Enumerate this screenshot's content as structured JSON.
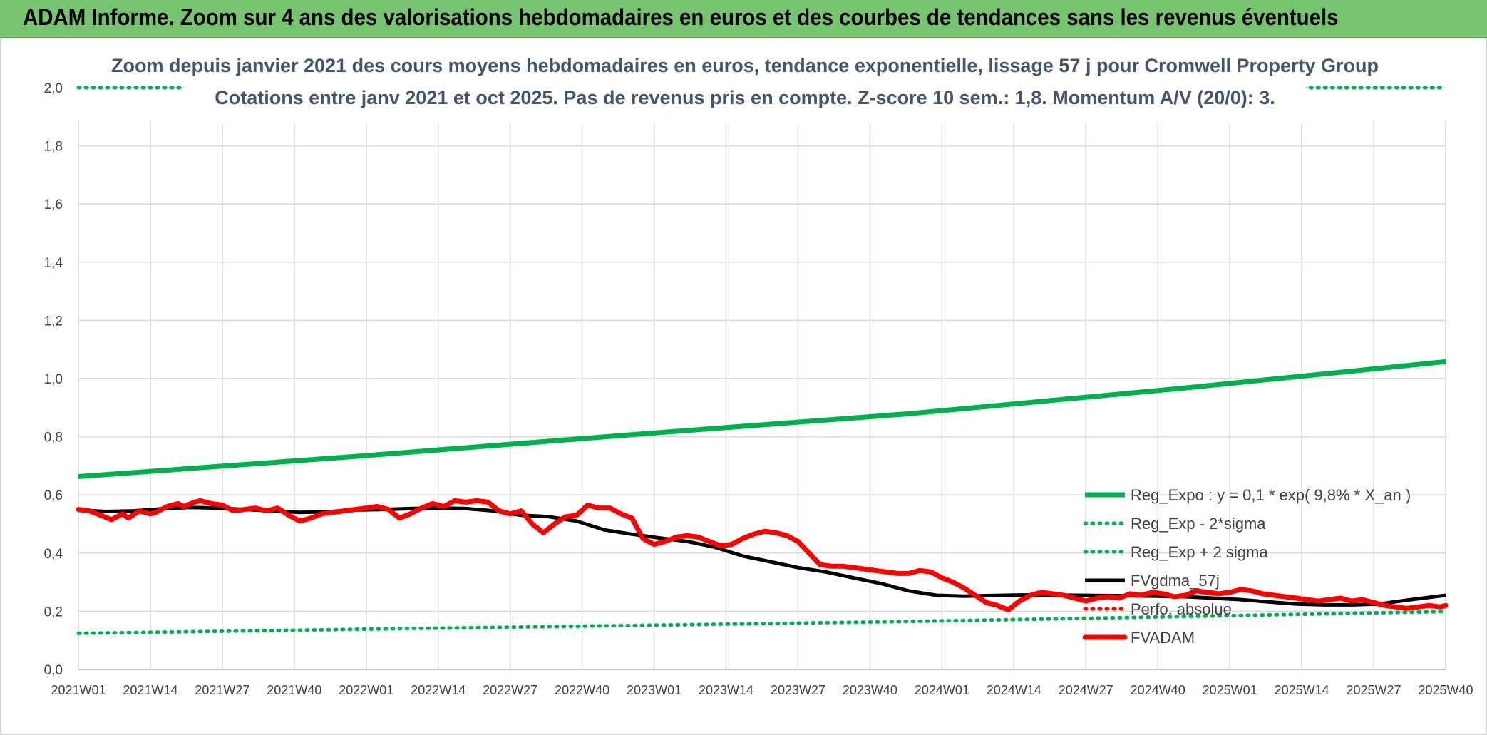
{
  "banner": {
    "title": "ADAM Informe. Zoom sur 4 ans des valorisations hebdomadaires en euros et des courbes de tendances sans les revenus éventuels"
  },
  "colors": {
    "banner_bg": "#76c46f",
    "trend_green": "#00b050",
    "fvadam_red": "#ff0000",
    "fvgdma_black": "#000000",
    "title_text": "#44546a"
  },
  "chart_data": {
    "type": "line",
    "title_line1": "Zoom depuis janvier 2021 des cours moyens hebdomadaires en euros, tendance exponentielle, lissage 57 j pour Cromwell Property Group",
    "title_line2": "Cotations entre janv 2021 et oct 2025. Pas de revenus pris en compte. Z-score 10 sem.: 1,8. Momentum A/V (20/0): 3.",
    "xlabel": "",
    "ylabel": "",
    "ylim": [
      0,
      2
    ],
    "y_ticks": [
      "0,0",
      "0,2",
      "0,4",
      "0,6",
      "0,8",
      "1,0",
      "1,2",
      "1,4",
      "1,6",
      "1,8",
      "2,0"
    ],
    "x_tick_labels": [
      "2021W01",
      "2021W14",
      "2021W27",
      "2021W40",
      "2022W01",
      "2022W14",
      "2022W27",
      "2022W40",
      "2023W01",
      "2023W14",
      "2023W27",
      "2023W40",
      "2024W01",
      "2024W14",
      "2024W27",
      "2024W40",
      "2025W01",
      "2025W14",
      "2025W27",
      "2025W40"
    ],
    "x_range_weeks": [
      0,
      247
    ],
    "grid": true,
    "legend_position": "bottom-right",
    "series": [
      {
        "name": "Reg_Expo : y = 0,1 * exp( 9,8% *  X_an )",
        "style": "solid",
        "color": "#00b050",
        "points": [
          [
            0,
            0.663
          ],
          [
            50,
            0.732
          ],
          [
            100,
            0.807
          ],
          [
            150,
            0.879
          ],
          [
            200,
            0.968
          ],
          [
            247,
            1.058
          ]
        ]
      },
      {
        "name": "Reg_Exp - 2*sigma",
        "style": "dotted",
        "color": "#00b050",
        "points": [
          [
            0,
            0.124
          ],
          [
            50,
            0.138
          ],
          [
            100,
            0.151
          ],
          [
            150,
            0.165
          ],
          [
            200,
            0.182
          ],
          [
            247,
            0.199
          ]
        ]
      },
      {
        "name": "Reg_Exp + 2 sigma",
        "style": "dotted",
        "color": "#00b050",
        "points": [
          [
            0,
            2.0
          ],
          [
            19,
            2.0
          ]
        ],
        "points_right": [
          [
            220,
            2.0
          ],
          [
            247,
            2.0
          ]
        ]
      },
      {
        "name": "FVgdma_57j",
        "style": "solid",
        "color": "#000000",
        "points": [
          [
            0,
            0.548
          ],
          [
            5,
            0.543
          ],
          [
            10,
            0.545
          ],
          [
            15,
            0.552
          ],
          [
            20,
            0.557
          ],
          [
            25,
            0.555
          ],
          [
            30,
            0.55
          ],
          [
            35,
            0.545
          ],
          [
            40,
            0.54
          ],
          [
            45,
            0.542
          ],
          [
            50,
            0.548
          ],
          [
            55,
            0.55
          ],
          [
            60,
            0.553
          ],
          [
            65,
            0.555
          ],
          [
            70,
            0.553
          ],
          [
            75,
            0.545
          ],
          [
            80,
            0.53
          ],
          [
            85,
            0.525
          ],
          [
            90,
            0.51
          ],
          [
            95,
            0.48
          ],
          [
            100,
            0.465
          ],
          [
            105,
            0.452
          ],
          [
            110,
            0.44
          ],
          [
            115,
            0.42
          ],
          [
            120,
            0.39
          ],
          [
            125,
            0.37
          ],
          [
            130,
            0.35
          ],
          [
            135,
            0.335
          ],
          [
            140,
            0.315
          ],
          [
            145,
            0.295
          ],
          [
            150,
            0.27
          ],
          [
            155,
            0.255
          ],
          [
            160,
            0.252
          ],
          [
            165,
            0.254
          ],
          [
            170,
            0.256
          ],
          [
            175,
            0.256
          ],
          [
            180,
            0.255
          ],
          [
            185,
            0.254
          ],
          [
            190,
            0.253
          ],
          [
            195,
            0.252
          ],
          [
            200,
            0.25
          ],
          [
            205,
            0.245
          ],
          [
            210,
            0.24
          ],
          [
            215,
            0.232
          ],
          [
            220,
            0.225
          ],
          [
            225,
            0.222
          ],
          [
            230,
            0.222
          ],
          [
            235,
            0.225
          ],
          [
            240,
            0.238
          ],
          [
            247,
            0.255
          ]
        ]
      },
      {
        "name": "Perfo. absolue",
        "style": "dotted",
        "color": "#ff0000",
        "points": []
      },
      {
        "name": "FVADAM",
        "style": "solid",
        "color": "#ff0000",
        "points": [
          [
            0,
            0.55
          ],
          [
            2,
            0.545
          ],
          [
            4,
            0.53
          ],
          [
            6,
            0.515
          ],
          [
            8,
            0.535
          ],
          [
            9,
            0.52
          ],
          [
            11,
            0.545
          ],
          [
            13,
            0.535
          ],
          [
            14,
            0.54
          ],
          [
            16,
            0.56
          ],
          [
            18,
            0.57
          ],
          [
            19,
            0.56
          ],
          [
            21,
            0.575
          ],
          [
            22,
            0.58
          ],
          [
            24,
            0.57
          ],
          [
            26,
            0.565
          ],
          [
            28,
            0.545
          ],
          [
            30,
            0.55
          ],
          [
            32,
            0.555
          ],
          [
            34,
            0.545
          ],
          [
            36,
            0.555
          ],
          [
            38,
            0.53
          ],
          [
            40,
            0.51
          ],
          [
            42,
            0.52
          ],
          [
            44,
            0.535
          ],
          [
            46,
            0.54
          ],
          [
            48,
            0.545
          ],
          [
            50,
            0.55
          ],
          [
            52,
            0.555
          ],
          [
            54,
            0.56
          ],
          [
            56,
            0.55
          ],
          [
            58,
            0.52
          ],
          [
            60,
            0.535
          ],
          [
            62,
            0.555
          ],
          [
            64,
            0.57
          ],
          [
            66,
            0.56
          ],
          [
            68,
            0.58
          ],
          [
            70,
            0.575
          ],
          [
            72,
            0.58
          ],
          [
            74,
            0.575
          ],
          [
            76,
            0.545
          ],
          [
            78,
            0.535
          ],
          [
            80,
            0.545
          ],
          [
            82,
            0.5
          ],
          [
            84,
            0.47
          ],
          [
            86,
            0.5
          ],
          [
            88,
            0.525
          ],
          [
            90,
            0.53
          ],
          [
            92,
            0.565
          ],
          [
            94,
            0.555
          ],
          [
            96,
            0.555
          ],
          [
            98,
            0.535
          ],
          [
            100,
            0.52
          ],
          [
            102,
            0.45
          ],
          [
            104,
            0.43
          ],
          [
            106,
            0.44
          ],
          [
            108,
            0.455
          ],
          [
            110,
            0.46
          ],
          [
            112,
            0.455
          ],
          [
            114,
            0.44
          ],
          [
            116,
            0.425
          ],
          [
            118,
            0.43
          ],
          [
            120,
            0.45
          ],
          [
            122,
            0.465
          ],
          [
            124,
            0.475
          ],
          [
            126,
            0.47
          ],
          [
            128,
            0.46
          ],
          [
            130,
            0.44
          ],
          [
            132,
            0.4
          ],
          [
            134,
            0.36
          ],
          [
            136,
            0.355
          ],
          [
            138,
            0.355
          ],
          [
            140,
            0.35
          ],
          [
            142,
            0.345
          ],
          [
            144,
            0.34
          ],
          [
            146,
            0.335
          ],
          [
            148,
            0.33
          ],
          [
            150,
            0.33
          ],
          [
            152,
            0.34
          ],
          [
            154,
            0.335
          ],
          [
            156,
            0.315
          ],
          [
            158,
            0.3
          ],
          [
            160,
            0.28
          ],
          [
            162,
            0.255
          ],
          [
            164,
            0.23
          ],
          [
            166,
            0.22
          ],
          [
            168,
            0.205
          ],
          [
            170,
            0.235
          ],
          [
            172,
            0.255
          ],
          [
            174,
            0.265
          ],
          [
            176,
            0.26
          ],
          [
            178,
            0.255
          ],
          [
            180,
            0.245
          ],
          [
            182,
            0.235
          ],
          [
            184,
            0.245
          ],
          [
            186,
            0.25
          ],
          [
            188,
            0.245
          ],
          [
            190,
            0.26
          ],
          [
            192,
            0.255
          ],
          [
            194,
            0.265
          ],
          [
            196,
            0.26
          ],
          [
            198,
            0.25
          ],
          [
            200,
            0.255
          ],
          [
            202,
            0.27
          ],
          [
            204,
            0.265
          ],
          [
            206,
            0.26
          ],
          [
            208,
            0.265
          ],
          [
            210,
            0.275
          ],
          [
            212,
            0.27
          ],
          [
            214,
            0.26
          ],
          [
            216,
            0.255
          ],
          [
            218,
            0.25
          ],
          [
            220,
            0.245
          ],
          [
            222,
            0.24
          ],
          [
            224,
            0.235
          ],
          [
            226,
            0.24
          ],
          [
            228,
            0.245
          ],
          [
            230,
            0.235
          ],
          [
            232,
            0.24
          ],
          [
            234,
            0.23
          ],
          [
            236,
            0.22
          ],
          [
            238,
            0.215
          ],
          [
            240,
            0.21
          ],
          [
            242,
            0.215
          ],
          [
            244,
            0.22
          ],
          [
            246,
            0.215
          ],
          [
            247,
            0.22
          ]
        ]
      }
    ]
  }
}
